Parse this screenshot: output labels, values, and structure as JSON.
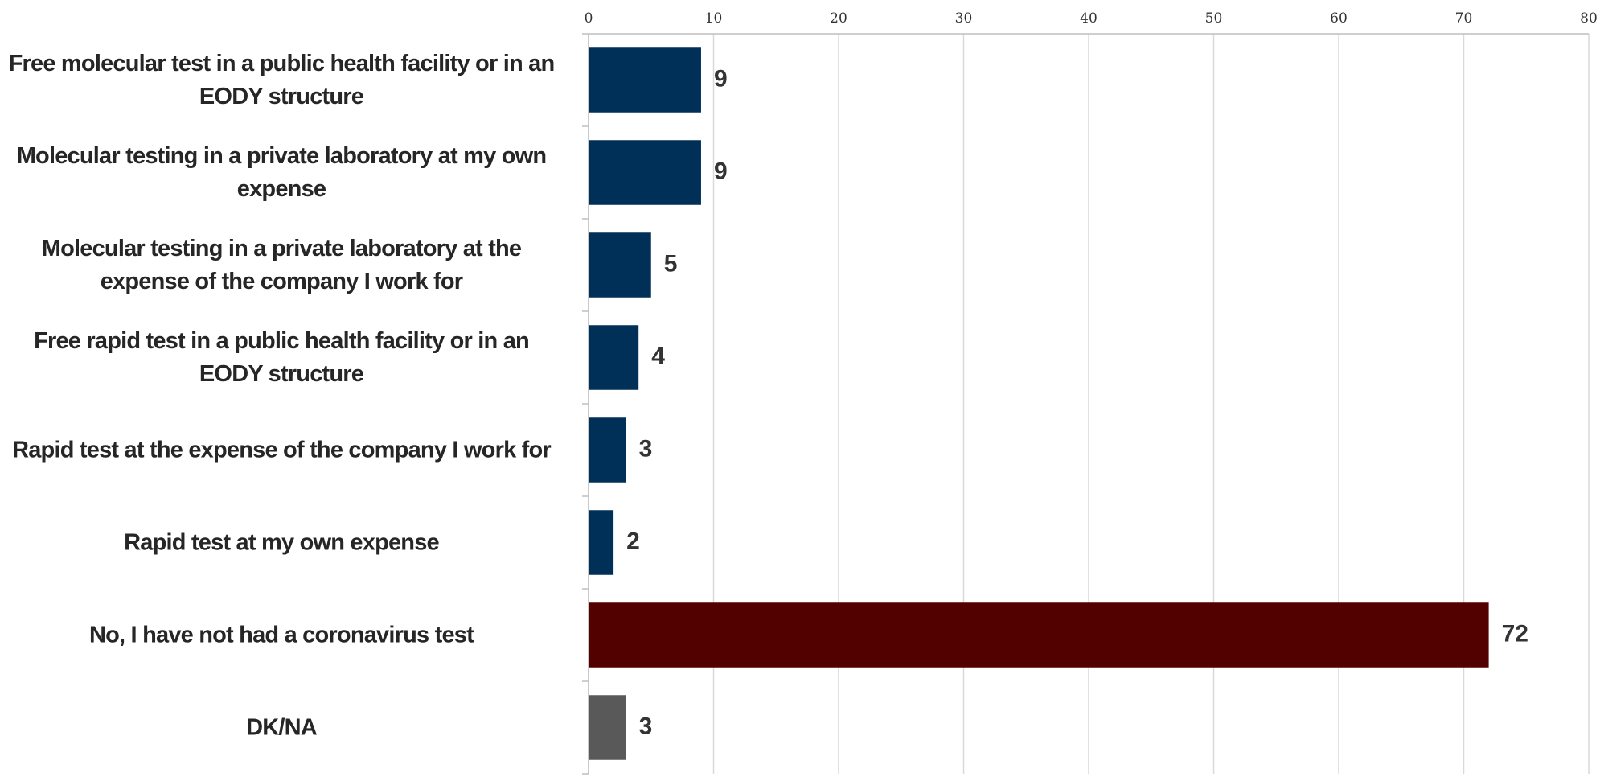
{
  "chart_data": {
    "type": "hbar",
    "categories": [
      "Free molecular test in a public health facility or in an EODY structure",
      "Molecular testing in a private laboratory at my own expense",
      "Molecular testing in a private laboratory at the expense of the company I work for",
      "Free rapid test in a public health facility or in an EODY structure",
      "Rapid test at the expense of the company I work for",
      "Rapid test at my own expense",
      "No, I have not had a coronavirus test",
      "DK/NA"
    ],
    "values": [
      9,
      9,
      5,
      4,
      3,
      2,
      72,
      3
    ],
    "colors": [
      "#003057",
      "#003057",
      "#003057",
      "#003057",
      "#003057",
      "#003057",
      "#520000",
      "#595959"
    ],
    "xlim": [
      0,
      80
    ],
    "xticks": [
      0,
      10,
      20,
      30,
      40,
      50,
      60,
      70,
      80
    ],
    "grid": true
  }
}
